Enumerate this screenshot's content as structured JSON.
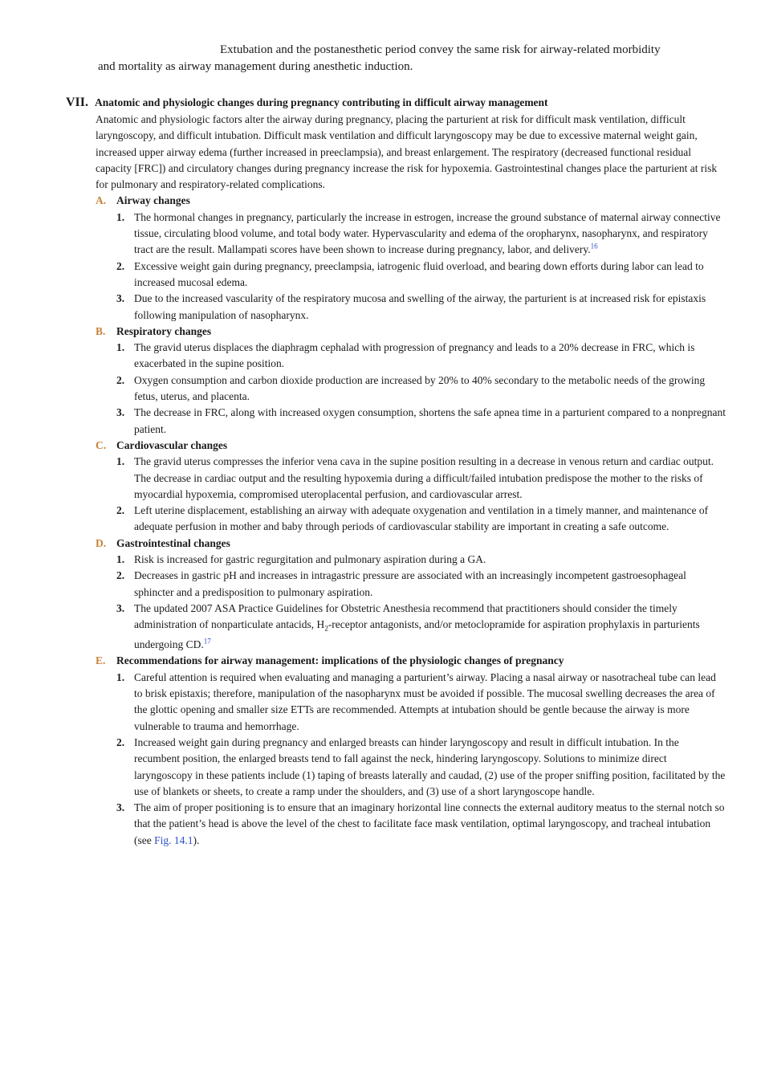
{
  "intro": {
    "line1": "Extubation and the postanesthetic period convey the same risk for airway-related morbidity",
    "line2": "and mortality as airway management during anesthetic induction."
  },
  "section": {
    "number": "VII.",
    "title": "Anatomic and physiologic changes during pregnancy contributing in difficult airway management",
    "body": "Anatomic and physiologic factors alter the airway during pregnancy, placing the parturient at risk for difficult mask ventilation, difficult laryngoscopy, and difficult intubation. Difficult mask ventilation and difficult laryngoscopy may be due to excessive maternal weight gain, increased upper airway edema (further increased in preeclampsia), and breast enlargement. The respiratory (decreased functional residual capacity [FRC]) and circulatory changes during pregnancy increase the risk for hypoxemia. Gastrointestinal changes place the parturient at risk for pulmonary and respiratory-related complications."
  },
  "subsections": [
    {
      "letter": "A.",
      "title": "Airway changes",
      "items": [
        {
          "num": "1.",
          "text": "The hormonal changes in pregnancy, particularly the increase in estrogen, increase the ground substance of maternal airway connective tissue, circulating blood volume, and total body water. Hypervascularity and edema of the oropharynx, nasopharynx, and respiratory tract are the result. Mallampati scores have been shown to increase during pregnancy, labor, and delivery.",
          "ref": "16"
        },
        {
          "num": "2.",
          "text": "Excessive weight gain during pregnancy, preeclampsia, iatrogenic fluid overload, and bearing down efforts during labor can lead to increased mucosal edema.",
          "ref": ""
        },
        {
          "num": "3.",
          "text": "Due to the increased vascularity of the respiratory mucosa and swelling of the airway, the parturient is at increased risk for epistaxis following manipulation of nasopharynx.",
          "ref": ""
        }
      ]
    },
    {
      "letter": "B.",
      "title": "Respiratory changes",
      "items": [
        {
          "num": "1.",
          "text": "The gravid uterus displaces the diaphragm cephalad with progression of pregnancy and leads to a 20% decrease in FRC, which is exacerbated in the supine position.",
          "ref": ""
        },
        {
          "num": "2.",
          "text": "Oxygen consumption and carbon dioxide production are increased by 20% to 40% secondary to the metabolic needs of the growing fetus, uterus, and placenta.",
          "ref": ""
        },
        {
          "num": "3.",
          "text": "The decrease in FRC, along with increased oxygen consumption, shortens the safe apnea time in a parturient compared to a nonpregnant patient.",
          "ref": ""
        }
      ]
    },
    {
      "letter": "C.",
      "title": "Cardiovascular changes",
      "items": [
        {
          "num": "1.",
          "text": "The gravid uterus compresses the inferior vena cava in the supine position resulting in a decrease in venous return and cardiac output. The decrease in cardiac output and the resulting hypoxemia during a difficult/failed intubation predispose the mother to the risks of myocardial hypoxemia, compromised uteroplacental perfusion, and cardiovascular arrest.",
          "ref": ""
        },
        {
          "num": "2.",
          "text": "Left uterine displacement, establishing an airway with adequate oxygenation and ventilation in a timely manner, and maintenance of adequate perfusion in mother and baby through periods of cardiovascular stability are important in creating a safe outcome.",
          "ref": ""
        }
      ]
    },
    {
      "letter": "D.",
      "title": "Gastrointestinal changes",
      "items": [
        {
          "num": "1.",
          "text": "Risk is increased for gastric regurgitation and pulmonary aspiration during a GA.",
          "ref": ""
        },
        {
          "num": "2.",
          "text": "Decreases in gastric pH and increases in intragastric pressure are associated with an increasingly incompetent gastroesophageal sphincter and a predisposition to pulmonary aspiration.",
          "ref": ""
        },
        {
          "num": "3.",
          "text_before": "The updated 2007 ASA Practice Guidelines for Obstetric Anesthesia recommend that practitioners should consider the timely administration of nonparticulate antacids, H",
          "text_sub": "2",
          "text_after": "-receptor antagonists, and/or metoclopramide for aspiration prophylaxis in parturients undergoing CD.",
          "ref": "17"
        }
      ]
    },
    {
      "letter": "E.",
      "title": "Recommendations for airway management: implications of the physiologic changes of pregnancy",
      "items": [
        {
          "num": "1.",
          "text": "Careful attention is required when evaluating and managing a parturient’s airway. Placing a nasal airway or nasotracheal tube can lead to brisk epistaxis; therefore, manipulation of the nasopharynx must be avoided if possible. The mucosal swelling decreases the area of the glottic opening and smaller size ETTs are recommended. Attempts at intubation should be gentle because the airway is more vulnerable to trauma and hemorrhage.",
          "ref": ""
        },
        {
          "num": "2.",
          "text": "Increased weight gain during pregnancy and enlarged breasts can hinder laryngoscopy and result in difficult intubation. In the recumbent position, the enlarged breasts tend to fall against the neck, hindering laryngoscopy. Solutions to minimize direct laryngoscopy in these patients include (1) taping of breasts laterally and caudad, (2) use of the proper sniffing position, facilitated by the use of blankets or sheets, to create a ramp under the shoulders, and (3) use of a short laryngoscope handle.",
          "ref": ""
        },
        {
          "num": "3.",
          "text_before": "The aim of proper positioning is to ensure that an imaginary horizontal line connects the external auditory meatus to the sternal notch so that the patient’s head is above the level of the chest to facilitate face mask ventilation, optimal laryngoscopy, and tracheal intubation (see ",
          "link": "Fig. 14.1",
          "text_after": ").",
          "ref": ""
        }
      ]
    }
  ]
}
